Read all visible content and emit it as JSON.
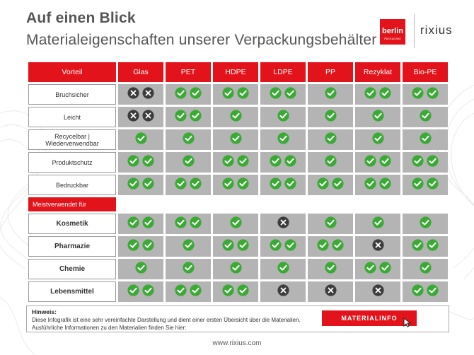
{
  "page": {
    "title": "Auf einen Blick",
    "subtitle": "Materialeigenschaften unserer Verpackungsbehälter",
    "footer": "www.rixius.com"
  },
  "brand": {
    "logo_berlin_text": "berlin",
    "logo_berlin_sub": "PACKAGING",
    "logo_rixius": "rixius",
    "accent": "#e3131b"
  },
  "table": {
    "header": [
      "Vorteil",
      "Glas",
      "PET",
      "HDPE",
      "LDPE",
      "PP",
      "Rezyklat",
      "Bio-PE"
    ],
    "rows": [
      {
        "label": "Bruchsicher",
        "cells": [
          "xx",
          "cc",
          "cc",
          "cc",
          "c",
          "cc",
          "cc"
        ]
      },
      {
        "label": "Leicht",
        "cells": [
          "xx",
          "cc",
          "c",
          "c",
          "c",
          "c",
          "c"
        ]
      },
      {
        "label": "Recycelbar | Wiederverwendbar",
        "cells": [
          "c",
          "c",
          "c",
          "c",
          "c",
          "c",
          "c"
        ]
      },
      {
        "label": "Produktschutz",
        "cells": [
          "cc",
          "c",
          "cc",
          "cc",
          "c",
          "cc",
          "cc"
        ]
      },
      {
        "label": "Bedruckbar",
        "cells": [
          "cc",
          "cc",
          "cc",
          "cc",
          "cc",
          "cc",
          "cc"
        ]
      }
    ],
    "section_label": "Meistverwendet für",
    "usage_rows": [
      {
        "label": "Kosmetik",
        "cells": [
          "cc",
          "cc",
          "c",
          "x",
          "c",
          "c",
          "c"
        ]
      },
      {
        "label": "Pharmazie",
        "cells": [
          "cc",
          "c",
          "cc",
          "cc",
          "cc",
          "x",
          "cc"
        ]
      },
      {
        "label": "Chemie",
        "cells": [
          "c",
          "c",
          "c",
          "c",
          "c",
          "cc",
          "c"
        ]
      },
      {
        "label": "Lebensmittel",
        "cells": [
          "cc",
          "cc",
          "cc",
          "x",
          "x",
          "x",
          "cc"
        ]
      }
    ],
    "colors": {
      "check": "#3aaa35",
      "cross": "#3c3c3c",
      "cell_bg": "#b4b4b4"
    }
  },
  "note": {
    "title": "Hinweis:",
    "text": "Diese Infografik ist eine sehr vereinfachte Darstellung und dient einer ersten Übersicht über die Materialien.  Ausführliche Informationen zu den Materialien finden Sie hier:",
    "button_label": "MATERIALINFO"
  }
}
